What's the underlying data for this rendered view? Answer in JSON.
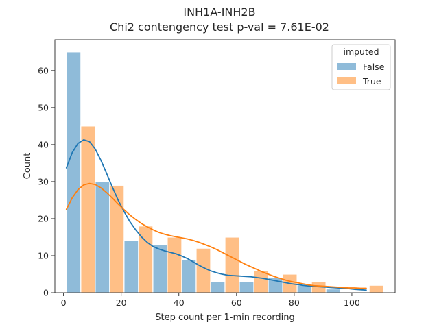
{
  "chart_data": {
    "type": "bar",
    "title": "INH1A-INH2B",
    "subtitle": "Chi2 contengency test p-val = 7.61E-02",
    "xlabel": "Step count per 1-min recording",
    "ylabel": "Count",
    "xlim": [
      -3,
      115
    ],
    "ylim": [
      0,
      68.3
    ],
    "xticks": [
      0,
      20,
      40,
      60,
      80,
      100
    ],
    "yticks": [
      0,
      10,
      20,
      30,
      40,
      50,
      60
    ],
    "grid": false,
    "legend": {
      "title": "imputed",
      "placement": "top-right"
    },
    "colors": {
      "False": "#1f77b4",
      "True": "#ff7f0e"
    },
    "bins": [
      {
        "left": 1,
        "right": 11
      },
      {
        "left": 11,
        "right": 21
      },
      {
        "left": 21,
        "right": 31
      },
      {
        "left": 31,
        "right": 41
      },
      {
        "left": 41,
        "right": 51
      },
      {
        "left": 51,
        "right": 61
      },
      {
        "left": 61,
        "right": 71
      },
      {
        "left": 71,
        "right": 81
      },
      {
        "left": 81,
        "right": 91
      },
      {
        "left": 91,
        "right": 101
      },
      {
        "left": 101,
        "right": 111
      }
    ],
    "series": [
      {
        "name": "False",
        "values": [
          65,
          30,
          14,
          13,
          9,
          3,
          3,
          4,
          2,
          1,
          0
        ],
        "kde": [
          [
            1,
            33.7
          ],
          [
            3,
            37.8
          ],
          [
            5,
            40.3
          ],
          [
            7,
            41.3
          ],
          [
            9,
            40.8
          ],
          [
            11,
            38.8
          ],
          [
            13,
            35.7
          ],
          [
            15,
            32.1
          ],
          [
            17,
            28.4
          ],
          [
            19,
            24.9
          ],
          [
            21,
            21.9
          ],
          [
            23,
            19.2
          ],
          [
            25,
            17.0
          ],
          [
            27,
            15.1
          ],
          [
            29,
            13.6
          ],
          [
            31,
            12.5
          ],
          [
            33,
            11.8
          ],
          [
            35,
            11.3
          ],
          [
            37,
            10.9
          ],
          [
            39,
            10.5
          ],
          [
            41,
            9.9
          ],
          [
            43,
            9.2
          ],
          [
            45,
            8.3
          ],
          [
            47,
            7.4
          ],
          [
            49,
            6.6
          ],
          [
            51,
            5.9
          ],
          [
            53,
            5.4
          ],
          [
            55,
            5.0
          ],
          [
            57,
            4.7
          ],
          [
            59,
            4.6
          ],
          [
            61,
            4.5
          ],
          [
            63,
            4.4
          ],
          [
            65,
            4.3
          ],
          [
            67,
            4.1
          ],
          [
            69,
            3.9
          ],
          [
            71,
            3.6
          ],
          [
            73,
            3.3
          ],
          [
            75,
            3.0
          ],
          [
            77,
            2.7
          ],
          [
            79,
            2.4
          ],
          [
            81,
            2.2
          ],
          [
            83,
            2.0
          ],
          [
            85,
            1.8
          ],
          [
            87,
            1.7
          ],
          [
            89,
            1.6
          ],
          [
            91,
            1.5
          ],
          [
            93,
            1.4
          ],
          [
            95,
            1.3
          ],
          [
            97,
            1.2
          ],
          [
            99,
            1.1
          ],
          [
            101,
            0.9
          ],
          [
            103,
            0.8
          ],
          [
            105,
            0.7
          ]
        ]
      },
      {
        "name": "True",
        "values": [
          45,
          29,
          18,
          15,
          12,
          15,
          6,
          5,
          3,
          0,
          2
        ],
        "kde": [
          [
            1,
            22.5
          ],
          [
            3,
            25.6
          ],
          [
            5,
            27.8
          ],
          [
            7,
            29.1
          ],
          [
            9,
            29.5
          ],
          [
            11,
            29.2
          ],
          [
            13,
            28.3
          ],
          [
            15,
            27.0
          ],
          [
            17,
            25.5
          ],
          [
            19,
            23.9
          ],
          [
            21,
            22.4
          ],
          [
            23,
            21.0
          ],
          [
            25,
            19.8
          ],
          [
            27,
            18.7
          ],
          [
            29,
            17.8
          ],
          [
            31,
            17.0
          ],
          [
            33,
            16.3
          ],
          [
            35,
            15.8
          ],
          [
            37,
            15.4
          ],
          [
            39,
            15.1
          ],
          [
            41,
            14.8
          ],
          [
            43,
            14.5
          ],
          [
            45,
            14.1
          ],
          [
            47,
            13.6
          ],
          [
            49,
            13.0
          ],
          [
            51,
            12.4
          ],
          [
            53,
            11.7
          ],
          [
            55,
            10.9
          ],
          [
            57,
            10.1
          ],
          [
            59,
            9.3
          ],
          [
            61,
            8.5
          ],
          [
            63,
            7.7
          ],
          [
            65,
            7.0
          ],
          [
            67,
            6.3
          ],
          [
            69,
            5.6
          ],
          [
            71,
            5.0
          ],
          [
            73,
            4.4
          ],
          [
            75,
            3.9
          ],
          [
            77,
            3.4
          ],
          [
            79,
            3.0
          ],
          [
            81,
            2.7
          ],
          [
            83,
            2.4
          ],
          [
            85,
            2.1
          ],
          [
            87,
            1.9
          ],
          [
            89,
            1.8
          ],
          [
            91,
            1.7
          ],
          [
            93,
            1.6
          ],
          [
            95,
            1.5
          ],
          [
            97,
            1.4
          ],
          [
            99,
            1.3
          ],
          [
            101,
            1.3
          ],
          [
            103,
            1.2
          ],
          [
            105,
            1.2
          ]
        ]
      }
    ]
  }
}
